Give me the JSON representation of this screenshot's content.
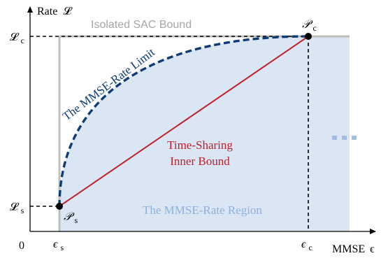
{
  "axes": {
    "y_label": "Rate",
    "y_symbol": "𝓛",
    "x_label": "MMSE",
    "x_symbol": "ϵ",
    "origin": "0"
  },
  "ticks": {
    "y_top_main": "𝓛",
    "y_top_sub": "c",
    "y_bottom_main": "𝓛",
    "y_bottom_sub": "s",
    "x_left_main": "ϵ",
    "x_left_sub": "s",
    "x_right_main": "ϵ",
    "x_right_sub": "c"
  },
  "points": {
    "pc_main": "𝒫",
    "pc_sub": "c",
    "ps_main": "𝒫",
    "ps_sub": "s"
  },
  "labels": {
    "isolated_bound": "Isolated SAC Bound",
    "mmse_limit": "The MMSE-Rate Limit",
    "time_sharing_1": "Time-Sharing",
    "time_sharing_2": "Inner Bound",
    "region": "The MMSE-Rate Region"
  },
  "colors": {
    "region_fill": "#dbe6f4",
    "limit_curve": "#0f3c78",
    "time_sharing_line": "#c0202a",
    "bound_lines": "#bfbfbf",
    "region_text": "#8eb0dc",
    "ellipsis": "#9dbde6",
    "bound_text": "#a6a6a6"
  }
}
